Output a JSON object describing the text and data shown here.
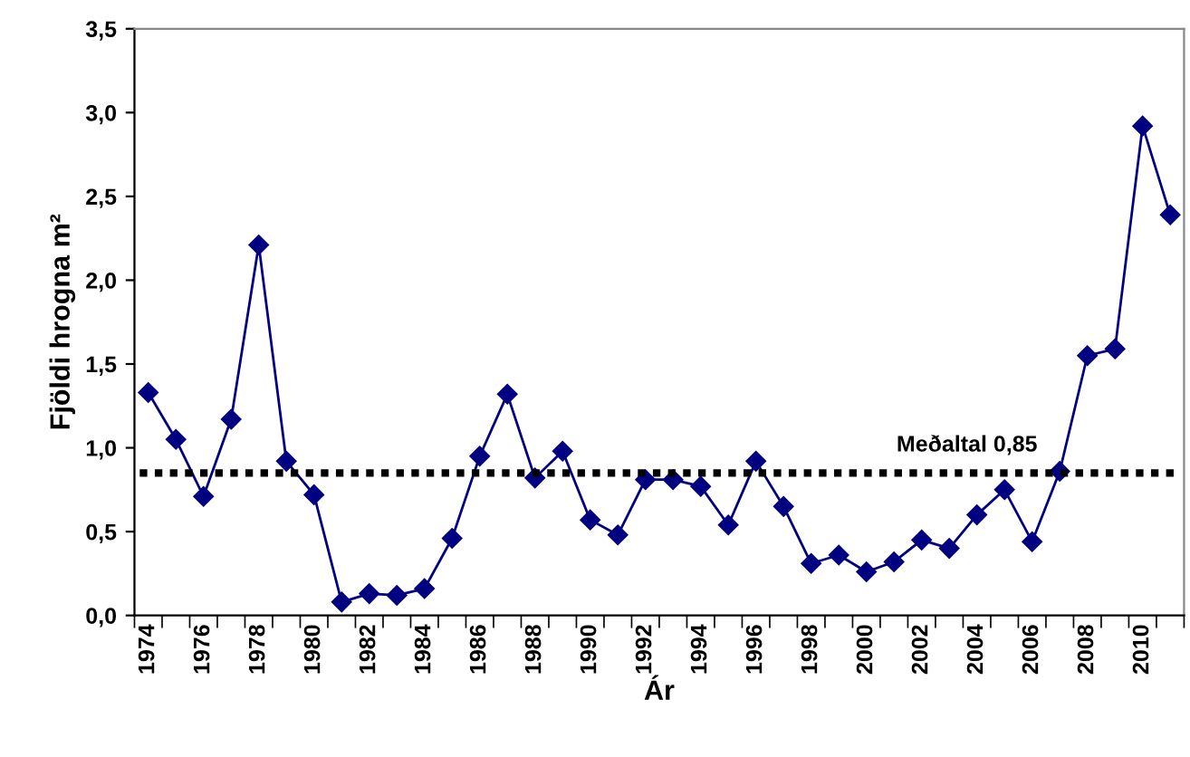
{
  "chart_data": {
    "type": "line",
    "xlabel": "Ár",
    "ylabel": "Fjöldi hrogna m²",
    "categories": [
      "1974",
      null,
      "1976",
      null,
      "1978",
      null,
      "1980",
      null,
      "1982",
      null,
      "1984",
      null,
      "1986",
      null,
      "1988",
      null,
      "1990",
      null,
      "1992",
      null,
      "1994",
      null,
      "1996",
      null,
      "1998",
      null,
      "2000",
      null,
      "2002",
      null,
      "2004",
      null,
      "2006",
      null,
      "2008",
      null,
      "2010",
      null
    ],
    "series": [
      {
        "color": "#000080",
        "values": [
          1.33,
          1.05,
          0.71,
          1.17,
          2.21,
          0.92,
          0.72,
          0.08,
          0.13,
          0.12,
          0.16,
          0.46,
          0.95,
          1.32,
          0.82,
          0.98,
          0.57,
          0.48,
          0.81,
          0.81,
          0.77,
          0.54,
          0.92,
          0.65,
          0.31,
          0.36,
          0.26,
          0.32,
          0.45,
          0.4,
          0.6,
          0.75,
          0.44,
          0.86,
          1.55,
          1.59,
          2.92,
          2.39
        ]
      }
    ],
    "ylim": [
      0,
      3.5
    ],
    "yticks": [
      {
        "value": 0,
        "label": "0,0"
      },
      {
        "value": 0.5,
        "label": "0,5"
      },
      {
        "value": 1,
        "label": "1,0"
      },
      {
        "value": 1.5,
        "label": "1,5"
      },
      {
        "value": 2,
        "label": "2,0"
      },
      {
        "value": 2.5,
        "label": "2,5"
      },
      {
        "value": 3,
        "label": "3,0"
      },
      {
        "value": 3.5,
        "label": "3,5"
      }
    ],
    "ref_lines": [
      {
        "axis": "y",
        "value": 0.85,
        "label": "Meðaltal 0,85",
        "color": "#000000",
        "line_style": "dotted"
      }
    ],
    "marker": "diamond",
    "line_style": "solid",
    "grid": false,
    "legend": false
  }
}
